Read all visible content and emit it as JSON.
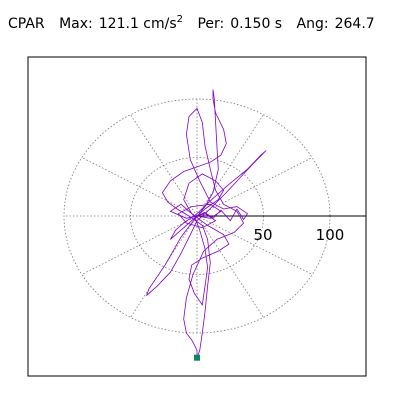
{
  "header": {
    "station": "CPAR",
    "max_label": "Max:",
    "max_value": "121.1 cm/s",
    "max_exp": "2",
    "per_label": "Per:",
    "per_value": "0.150 s",
    "ang_label": "Ang:",
    "ang_value": "264.7"
  },
  "polar": {
    "ring_labels": [
      "50",
      "100"
    ]
  },
  "chart_data": {
    "type": "line",
    "title": "",
    "max_acceleration": 121.1,
    "max_units": "cm/s^2",
    "period_s": 0.15,
    "angle_deg": 264.7,
    "rings": [
      50,
      100
    ],
    "colors": {
      "trace": "#8000c8",
      "peak_marker": "#0a8a5a",
      "grid": "#777777"
    },
    "trace": [
      [
        0,
        0
      ],
      [
        6,
        3
      ],
      [
        12,
        -2
      ],
      [
        18,
        5
      ],
      [
        25,
        -4
      ],
      [
        30,
        6
      ],
      [
        35,
        -3
      ],
      [
        38,
        2
      ],
      [
        30,
        8
      ],
      [
        20,
        6
      ],
      [
        10,
        12
      ],
      [
        2,
        30
      ],
      [
        -5,
        48
      ],
      [
        -8,
        70
      ],
      [
        -6,
        85
      ],
      [
        0,
        92
      ],
      [
        4,
        80
      ],
      [
        6,
        60
      ],
      [
        10,
        40
      ],
      [
        14,
        22
      ],
      [
        20,
        10
      ],
      [
        30,
        4
      ],
      [
        35,
        -6
      ],
      [
        28,
        -14
      ],
      [
        15,
        -20
      ],
      [
        5,
        -30
      ],
      [
        -3,
        -50
      ],
      [
        -8,
        -70
      ],
      [
        -10,
        -88
      ],
      [
        -8,
        -100
      ],
      [
        -4,
        -106
      ],
      [
        -2,
        -110
      ],
      [
        0,
        -115
      ],
      [
        0,
        -121.1
      ],
      [
        2,
        -115
      ],
      [
        4,
        -100
      ],
      [
        6,
        -82
      ],
      [
        8,
        -60
      ],
      [
        10,
        -40
      ],
      [
        8,
        -20
      ],
      [
        4,
        -8
      ],
      [
        -6,
        0
      ],
      [
        -15,
        6
      ],
      [
        -22,
        12
      ],
      [
        -26,
        20
      ],
      [
        -20,
        30
      ],
      [
        -10,
        38
      ],
      [
        0,
        42
      ],
      [
        10,
        46
      ],
      [
        18,
        52
      ],
      [
        22,
        62
      ],
      [
        20,
        74
      ],
      [
        14,
        88
      ],
      [
        12,
        100
      ],
      [
        12,
        108
      ],
      [
        13,
        100
      ],
      [
        14,
        80
      ],
      [
        15,
        60
      ],
      [
        16,
        40
      ],
      [
        12,
        20
      ],
      [
        6,
        8
      ],
      [
        -4,
        -6
      ],
      [
        -12,
        -18
      ],
      [
        -18,
        -30
      ],
      [
        -24,
        -42
      ],
      [
        -30,
        -52
      ],
      [
        -36,
        -62
      ],
      [
        -38,
        -68
      ],
      [
        -30,
        -60
      ],
      [
        -20,
        -48
      ],
      [
        -12,
        -32
      ],
      [
        -5,
        -16
      ],
      [
        0,
        -4
      ],
      [
        8,
        4
      ],
      [
        22,
        20
      ],
      [
        35,
        36
      ],
      [
        45,
        48
      ],
      [
        52,
        56
      ],
      [
        48,
        52
      ],
      [
        38,
        40
      ],
      [
        25,
        28
      ],
      [
        12,
        15
      ],
      [
        0,
        2
      ],
      [
        -10,
        -6
      ],
      [
        -16,
        -12
      ],
      [
        -20,
        -20
      ],
      [
        -14,
        -14
      ],
      [
        -4,
        -4
      ],
      [
        6,
        6
      ],
      [
        16,
        14
      ],
      [
        20,
        22
      ],
      [
        14,
        30
      ],
      [
        4,
        36
      ],
      [
        -6,
        28
      ],
      [
        -10,
        14
      ],
      [
        -4,
        2
      ],
      [
        8,
        -8
      ],
      [
        20,
        -16
      ],
      [
        24,
        -24
      ],
      [
        16,
        -30
      ],
      [
        4,
        -36
      ],
      [
        -4,
        -42
      ],
      [
        -6,
        -54
      ],
      [
        -2,
        -66
      ],
      [
        4,
        -76
      ],
      [
        6,
        -60
      ],
      [
        8,
        -44
      ],
      [
        6,
        -28
      ],
      [
        2,
        -12
      ],
      [
        -2,
        0
      ],
      [
        -12,
        10
      ],
      [
        -20,
        4
      ],
      [
        -8,
        -2
      ],
      [
        6,
        2
      ],
      [
        14,
        -4
      ],
      [
        4,
        -10
      ],
      [
        -8,
        -6
      ],
      [
        -14,
        2
      ],
      [
        -4,
        8
      ],
      [
        10,
        10
      ],
      [
        18,
        4
      ],
      [
        10,
        -2
      ],
      [
        0,
        0
      ]
    ]
  }
}
